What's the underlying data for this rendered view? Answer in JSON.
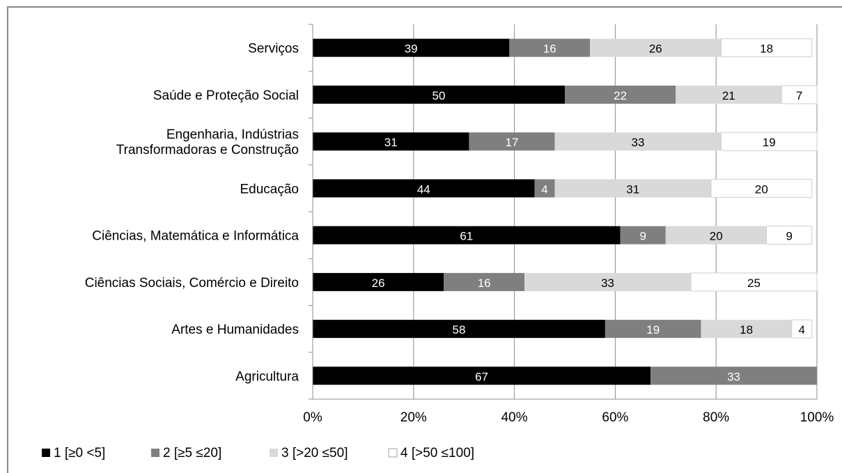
{
  "chart_data": {
    "type": "bar",
    "stacked": true,
    "normalized_percent": true,
    "orientation": "horizontal",
    "categories": [
      "Serviços",
      "Saúde e Proteção Social",
      "Engenharia, Indústrias|Transformadoras e Construção",
      "Educação",
      "Ciências, Matemática e Informática",
      "Ciências Sociais, Comércio e Direito",
      "Artes e Humanidades",
      "Agricultura"
    ],
    "series": [
      {
        "name": "1 [≥0 <5]",
        "color": "#000000",
        "label_color": "#ffffff",
        "values": [
          39,
          50,
          31,
          44,
          61,
          26,
          58,
          67
        ]
      },
      {
        "name": "2 [≥5 ≤20]",
        "color": "#7f7f7f",
        "label_color": "#ffffff",
        "values": [
          16,
          22,
          17,
          4,
          9,
          16,
          19,
          33
        ]
      },
      {
        "name": "3 [>20 ≤50]",
        "color": "#d9d9d9",
        "label_color": "#000000",
        "values": [
          26,
          21,
          33,
          31,
          20,
          33,
          18,
          0
        ]
      },
      {
        "name": "4 [>50 ≤100]",
        "color": "#ffffff",
        "label_color": "#000000",
        "values": [
          18,
          7,
          19,
          20,
          9,
          25,
          4,
          0
        ]
      }
    ],
    "xticks": [
      "0%",
      "20%",
      "40%",
      "60%",
      "80%",
      "100%"
    ],
    "xlim": [
      0,
      100
    ],
    "grid": true,
    "legend_position": "bottom-left"
  }
}
